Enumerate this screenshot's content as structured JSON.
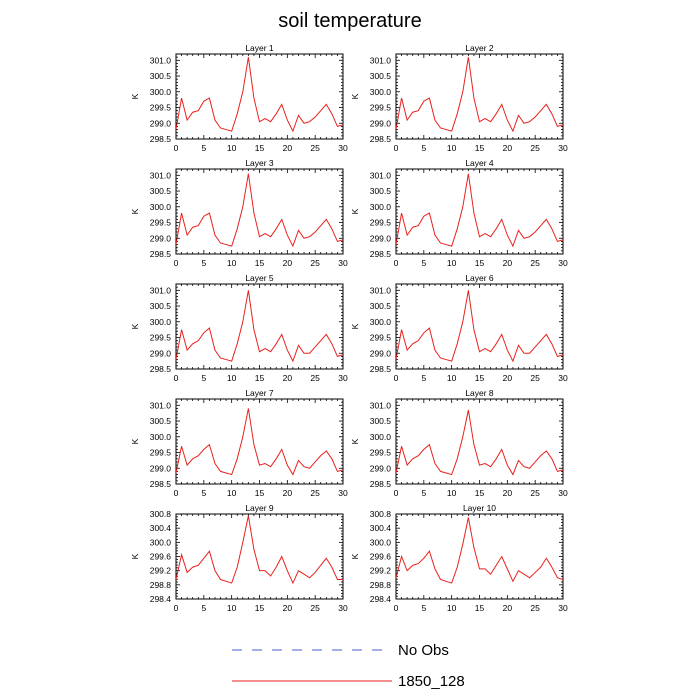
{
  "title": "soil temperature",
  "legend": [
    {
      "label": "No Obs",
      "color": "#4b5bd0",
      "dash": true
    },
    {
      "label": "1850_128",
      "color": "#e8211d",
      "dash": false
    }
  ],
  "chart_data": [
    {
      "type": "line",
      "title": "Layer 1",
      "ylabel": "K",
      "xlim": [
        0,
        30
      ],
      "ylim": [
        298.5,
        301.2
      ],
      "xticks": [
        "0",
        "5",
        "10",
        "15",
        "20",
        "25",
        "30"
      ],
      "yticks": [
        "298.5",
        "299.0",
        "299.5",
        "300.0",
        "300.5",
        "301.0"
      ],
      "series": [
        {
          "name": "1850_128",
          "x": [
            0,
            1,
            2,
            3,
            4,
            5,
            6,
            7,
            8,
            9,
            10,
            11,
            12,
            13,
            14,
            15,
            16,
            17,
            18,
            19,
            20,
            21,
            22,
            23,
            24,
            25,
            26,
            27,
            28,
            29,
            30
          ],
          "values": [
            298.8,
            299.8,
            299.1,
            299.35,
            299.4,
            299.7,
            299.8,
            299.1,
            298.85,
            298.8,
            298.75,
            299.3,
            300.0,
            301.1,
            299.8,
            299.05,
            299.15,
            299.05,
            299.3,
            299.6,
            299.1,
            298.75,
            299.25,
            299.0,
            299.05,
            299.2,
            299.4,
            299.6,
            299.3,
            298.9,
            298.95
          ]
        }
      ]
    },
    {
      "type": "line",
      "title": "Layer 2",
      "ylabel": "K",
      "xlim": [
        0,
        30
      ],
      "ylim": [
        298.5,
        301.2
      ],
      "xticks": [
        "0",
        "5",
        "10",
        "15",
        "20",
        "25",
        "30"
      ],
      "yticks": [
        "298.5",
        "299.0",
        "299.5",
        "300.0",
        "300.5",
        "301.0"
      ],
      "series": [
        {
          "name": "1850_128",
          "x": [
            0,
            1,
            2,
            3,
            4,
            5,
            6,
            7,
            8,
            9,
            10,
            11,
            12,
            13,
            14,
            15,
            16,
            17,
            18,
            19,
            20,
            21,
            22,
            23,
            24,
            25,
            26,
            27,
            28,
            29,
            30
          ],
          "values": [
            298.8,
            299.8,
            299.1,
            299.35,
            299.4,
            299.7,
            299.8,
            299.1,
            298.85,
            298.8,
            298.75,
            299.3,
            300.0,
            301.1,
            299.8,
            299.05,
            299.15,
            299.05,
            299.3,
            299.6,
            299.1,
            298.75,
            299.25,
            299.0,
            299.05,
            299.2,
            299.4,
            299.6,
            299.3,
            298.9,
            298.95
          ]
        }
      ]
    },
    {
      "type": "line",
      "title": "Layer 3",
      "ylabel": "K",
      "xlim": [
        0,
        30
      ],
      "ylim": [
        298.5,
        301.2
      ],
      "xticks": [
        "0",
        "5",
        "10",
        "15",
        "20",
        "25",
        "30"
      ],
      "yticks": [
        "298.5",
        "299.0",
        "299.5",
        "300.0",
        "300.5",
        "301.0"
      ],
      "series": [
        {
          "name": "1850_128",
          "x": [
            0,
            1,
            2,
            3,
            4,
            5,
            6,
            7,
            8,
            9,
            10,
            11,
            12,
            13,
            14,
            15,
            16,
            17,
            18,
            19,
            20,
            21,
            22,
            23,
            24,
            25,
            26,
            27,
            28,
            29,
            30
          ],
          "values": [
            298.8,
            299.8,
            299.1,
            299.35,
            299.4,
            299.7,
            299.8,
            299.1,
            298.85,
            298.8,
            298.75,
            299.3,
            300.0,
            301.05,
            299.8,
            299.05,
            299.15,
            299.05,
            299.3,
            299.6,
            299.1,
            298.75,
            299.25,
            299.0,
            299.05,
            299.2,
            299.4,
            299.6,
            299.3,
            298.9,
            298.95
          ]
        }
      ]
    },
    {
      "type": "line",
      "title": "Layer 4",
      "ylabel": "K",
      "xlim": [
        0,
        30
      ],
      "ylim": [
        298.5,
        301.2
      ],
      "xticks": [
        "0",
        "5",
        "10",
        "15",
        "20",
        "25",
        "30"
      ],
      "yticks": [
        "298.5",
        "299.0",
        "299.5",
        "300.0",
        "300.5",
        "301.0"
      ],
      "series": [
        {
          "name": "1850_128",
          "x": [
            0,
            1,
            2,
            3,
            4,
            5,
            6,
            7,
            8,
            9,
            10,
            11,
            12,
            13,
            14,
            15,
            16,
            17,
            18,
            19,
            20,
            21,
            22,
            23,
            24,
            25,
            26,
            27,
            28,
            29,
            30
          ],
          "values": [
            298.8,
            299.8,
            299.1,
            299.35,
            299.4,
            299.7,
            299.8,
            299.1,
            298.85,
            298.8,
            298.75,
            299.3,
            300.0,
            301.05,
            299.8,
            299.05,
            299.15,
            299.05,
            299.3,
            299.6,
            299.1,
            298.75,
            299.25,
            299.0,
            299.05,
            299.2,
            299.4,
            299.6,
            299.3,
            298.9,
            298.95
          ]
        }
      ]
    },
    {
      "type": "line",
      "title": "Layer 5",
      "ylabel": "K",
      "xlim": [
        0,
        30
      ],
      "ylim": [
        298.5,
        301.2
      ],
      "xticks": [
        "0",
        "5",
        "10",
        "15",
        "20",
        "25",
        "30"
      ],
      "yticks": [
        "298.5",
        "299.0",
        "299.5",
        "300.0",
        "300.5",
        "301.0"
      ],
      "series": [
        {
          "name": "1850_128",
          "x": [
            0,
            1,
            2,
            3,
            4,
            5,
            6,
            7,
            8,
            9,
            10,
            11,
            12,
            13,
            14,
            15,
            16,
            17,
            18,
            19,
            20,
            21,
            22,
            23,
            24,
            25,
            26,
            27,
            28,
            29,
            30
          ],
          "values": [
            298.8,
            299.75,
            299.1,
            299.3,
            299.4,
            299.65,
            299.8,
            299.1,
            298.85,
            298.8,
            298.75,
            299.3,
            300.0,
            301.0,
            299.75,
            299.05,
            299.15,
            299.05,
            299.3,
            299.6,
            299.1,
            298.75,
            299.25,
            299.0,
            299.0,
            299.2,
            299.4,
            299.6,
            299.3,
            298.9,
            298.95
          ]
        }
      ]
    },
    {
      "type": "line",
      "title": "Layer 6",
      "ylabel": "K",
      "xlim": [
        0,
        30
      ],
      "ylim": [
        298.5,
        301.2
      ],
      "xticks": [
        "0",
        "5",
        "10",
        "15",
        "20",
        "25",
        "30"
      ],
      "yticks": [
        "298.5",
        "299.0",
        "299.5",
        "300.0",
        "300.5",
        "301.0"
      ],
      "series": [
        {
          "name": "1850_128",
          "x": [
            0,
            1,
            2,
            3,
            4,
            5,
            6,
            7,
            8,
            9,
            10,
            11,
            12,
            13,
            14,
            15,
            16,
            17,
            18,
            19,
            20,
            21,
            22,
            23,
            24,
            25,
            26,
            27,
            28,
            29,
            30
          ],
          "values": [
            298.8,
            299.75,
            299.1,
            299.3,
            299.4,
            299.65,
            299.8,
            299.1,
            298.85,
            298.8,
            298.75,
            299.3,
            300.0,
            301.0,
            299.75,
            299.05,
            299.15,
            299.05,
            299.3,
            299.6,
            299.1,
            298.75,
            299.25,
            299.0,
            299.0,
            299.2,
            299.4,
            299.6,
            299.3,
            298.9,
            298.95
          ]
        }
      ]
    },
    {
      "type": "line",
      "title": "Layer 7",
      "ylabel": "K",
      "xlim": [
        0,
        30
      ],
      "ylim": [
        298.5,
        301.2
      ],
      "xticks": [
        "0",
        "5",
        "10",
        "15",
        "20",
        "25",
        "30"
      ],
      "yticks": [
        "298.5",
        "299.0",
        "299.5",
        "300.0",
        "300.5",
        "301.0"
      ],
      "series": [
        {
          "name": "1850_128",
          "x": [
            0,
            1,
            2,
            3,
            4,
            5,
            6,
            7,
            8,
            9,
            10,
            11,
            12,
            13,
            14,
            15,
            16,
            17,
            18,
            19,
            20,
            21,
            22,
            23,
            24,
            25,
            26,
            27,
            28,
            29,
            30
          ],
          "values": [
            298.85,
            299.7,
            299.1,
            299.3,
            299.4,
            299.6,
            299.75,
            299.15,
            298.9,
            298.85,
            298.8,
            299.3,
            300.0,
            300.9,
            299.75,
            299.1,
            299.15,
            299.05,
            299.3,
            299.6,
            299.1,
            298.8,
            299.25,
            299.05,
            299.0,
            299.2,
            299.4,
            299.55,
            299.3,
            298.9,
            298.95
          ]
        }
      ]
    },
    {
      "type": "line",
      "title": "Layer 8",
      "ylabel": "K",
      "xlim": [
        0,
        30
      ],
      "ylim": [
        298.5,
        301.2
      ],
      "xticks": [
        "0",
        "5",
        "10",
        "15",
        "20",
        "25",
        "30"
      ],
      "yticks": [
        "298.5",
        "299.0",
        "299.5",
        "300.0",
        "300.5",
        "301.0"
      ],
      "series": [
        {
          "name": "1850_128",
          "x": [
            0,
            1,
            2,
            3,
            4,
            5,
            6,
            7,
            8,
            9,
            10,
            11,
            12,
            13,
            14,
            15,
            16,
            17,
            18,
            19,
            20,
            21,
            22,
            23,
            24,
            25,
            26,
            27,
            28,
            29,
            30
          ],
          "values": [
            298.85,
            299.7,
            299.1,
            299.3,
            299.4,
            299.6,
            299.75,
            299.15,
            298.9,
            298.85,
            298.8,
            299.3,
            300.0,
            300.85,
            299.75,
            299.1,
            299.15,
            299.05,
            299.3,
            299.6,
            299.1,
            298.8,
            299.25,
            299.05,
            299.0,
            299.2,
            299.4,
            299.55,
            299.3,
            298.9,
            298.95
          ]
        }
      ]
    },
    {
      "type": "line",
      "title": "Layer 9",
      "ylabel": "K",
      "xlim": [
        0,
        30
      ],
      "ylim": [
        298.4,
        300.8
      ],
      "xticks": [
        "0",
        "5",
        "10",
        "15",
        "20",
        "25",
        "30"
      ],
      "yticks": [
        "298.4",
        "298.8",
        "299.2",
        "299.6",
        "300.0",
        "300.4",
        "300.8"
      ],
      "series": [
        {
          "name": "1850_128",
          "x": [
            0,
            1,
            2,
            3,
            4,
            5,
            6,
            7,
            8,
            9,
            10,
            11,
            12,
            13,
            14,
            15,
            16,
            17,
            18,
            19,
            20,
            21,
            22,
            23,
            24,
            25,
            26,
            27,
            28,
            29,
            30
          ],
          "values": [
            298.95,
            299.65,
            299.15,
            299.3,
            299.35,
            299.55,
            299.75,
            299.2,
            298.95,
            298.9,
            298.85,
            299.3,
            300.0,
            300.75,
            299.8,
            299.2,
            299.2,
            299.05,
            299.3,
            299.6,
            299.2,
            298.85,
            299.2,
            299.1,
            299.0,
            299.15,
            299.35,
            299.55,
            299.3,
            298.95,
            298.95
          ]
        }
      ]
    },
    {
      "type": "line",
      "title": "Layer 10",
      "ylabel": "K",
      "xlim": [
        0,
        30
      ],
      "ylim": [
        298.4,
        300.8
      ],
      "xticks": [
        "0",
        "5",
        "10",
        "15",
        "20",
        "25",
        "30"
      ],
      "yticks": [
        "298.4",
        "298.8",
        "299.2",
        "299.6",
        "300.0",
        "300.4",
        "300.8"
      ],
      "series": [
        {
          "name": "1850_128",
          "x": [
            0,
            1,
            2,
            3,
            4,
            5,
            6,
            7,
            8,
            9,
            10,
            11,
            12,
            13,
            14,
            15,
            16,
            17,
            18,
            19,
            20,
            21,
            22,
            23,
            24,
            25,
            26,
            27,
            28,
            29,
            30
          ],
          "values": [
            299.0,
            299.6,
            299.2,
            299.35,
            299.4,
            299.55,
            299.75,
            299.25,
            298.95,
            298.9,
            298.85,
            299.3,
            299.95,
            300.7,
            299.85,
            299.25,
            299.25,
            299.1,
            299.35,
            299.6,
            299.25,
            298.9,
            299.2,
            299.1,
            299.0,
            299.15,
            299.3,
            299.55,
            299.3,
            299.0,
            298.95
          ]
        }
      ]
    }
  ]
}
